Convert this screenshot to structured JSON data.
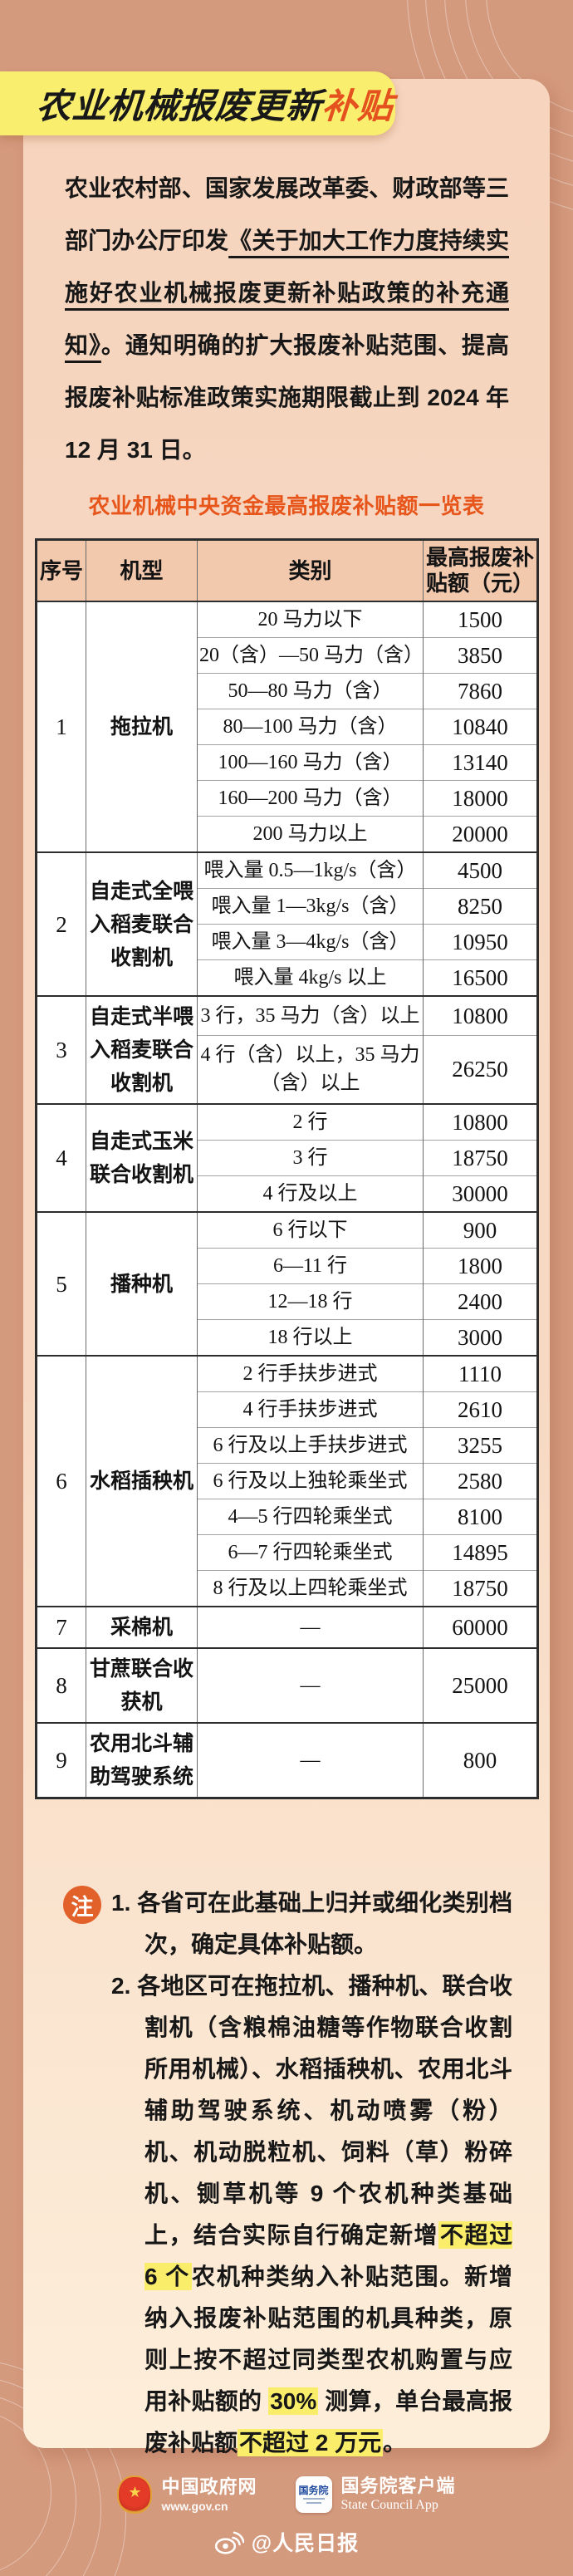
{
  "palette": {
    "background": "#d49a7e",
    "card_top": "#f6d4be",
    "card_bottom": "#fdeeda",
    "banner_yellow": "#f9ee6e",
    "accent_orange": "#e4511e",
    "table_header_bg": "#f3c9ae",
    "note_badge": "#e2602a",
    "highlight_yellow": "#f9ed6a"
  },
  "header": {
    "title_main": "农业机械报废更新",
    "title_accent": "补贴"
  },
  "intro": {
    "before": "农业农村部、国家发展改革委、财政部等三部门办公厅印发",
    "doc_title": "《关于加大工作力度持续实施好农业机械报废更新补贴政策的补充通知》",
    "after": "。通知明确的扩大报废补贴范围、提高报废补贴标准政策实施期限截止到 2024 年 12 月 31 日。"
  },
  "table": {
    "title": "农业机械中央资金最高报废补贴额一览表",
    "columns": [
      "序号",
      "机型",
      "类别",
      "最高报废补贴额（元）"
    ],
    "groups": [
      {
        "no": "1",
        "machine": "拖拉机",
        "rows": [
          {
            "category": "20 马力以下",
            "amount": "1500"
          },
          {
            "category": "20（含）—50 马力（含）",
            "amount": "3850"
          },
          {
            "category": "50—80 马力（含）",
            "amount": "7860"
          },
          {
            "category": "80—100 马力（含）",
            "amount": "10840"
          },
          {
            "category": "100—160 马力（含）",
            "amount": "13140"
          },
          {
            "category": "160—200 马力（含）",
            "amount": "18000"
          },
          {
            "category": "200 马力以上",
            "amount": "20000"
          }
        ]
      },
      {
        "no": "2",
        "machine": "自走式全喂入稻麦联合收割机",
        "rows": [
          {
            "category": "喂入量 0.5—1kg/s（含）",
            "amount": "4500"
          },
          {
            "category": "喂入量 1—3kg/s（含）",
            "amount": "8250"
          },
          {
            "category": "喂入量 3—4kg/s（含）",
            "amount": "10950"
          },
          {
            "category": "喂入量 4kg/s 以上",
            "amount": "16500"
          }
        ]
      },
      {
        "no": "3",
        "machine": "自走式半喂入稻麦联合收割机",
        "rows": [
          {
            "category": "3 行，35 马力（含）以上",
            "amount": "10800"
          },
          {
            "category": "4 行（含）以上，35 马力（含）以上",
            "amount": "26250"
          }
        ]
      },
      {
        "no": "4",
        "machine": "自走式玉米联合收割机",
        "rows": [
          {
            "category": "2 行",
            "amount": "10800"
          },
          {
            "category": "3 行",
            "amount": "18750"
          },
          {
            "category": "4 行及以上",
            "amount": "30000"
          }
        ]
      },
      {
        "no": "5",
        "machine": "播种机",
        "rows": [
          {
            "category": "6 行以下",
            "amount": "900"
          },
          {
            "category": "6—11 行",
            "amount": "1800"
          },
          {
            "category": "12—18 行",
            "amount": "2400"
          },
          {
            "category": "18 行以上",
            "amount": "3000"
          }
        ]
      },
      {
        "no": "6",
        "machine": "水稻插秧机",
        "rows": [
          {
            "category": "2 行手扶步进式",
            "amount": "1110"
          },
          {
            "category": "4 行手扶步进式",
            "amount": "2610"
          },
          {
            "category": "6 行及以上手扶步进式",
            "amount": "3255"
          },
          {
            "category": "6 行及以上独轮乘坐式",
            "amount": "2580"
          },
          {
            "category": "4—5 行四轮乘坐式",
            "amount": "8100"
          },
          {
            "category": "6—7 行四轮乘坐式",
            "amount": "14895"
          },
          {
            "category": "8 行及以上四轮乘坐式",
            "amount": "18750"
          }
        ]
      },
      {
        "no": "7",
        "machine": "采棉机",
        "rows": [
          {
            "category": "—",
            "amount": "60000"
          }
        ]
      },
      {
        "no": "8",
        "machine": "甘蔗联合收获机",
        "rows": [
          {
            "category": "—",
            "amount": "25000"
          }
        ]
      },
      {
        "no": "9",
        "machine": "农用北斗辅助驾驶系统",
        "rows": [
          {
            "category": "—",
            "amount": "800"
          }
        ]
      }
    ]
  },
  "notes": {
    "badge": "注",
    "items": [
      {
        "num": "1.",
        "segments": [
          {
            "text": "各省可在此基础上归并或细化类别档次，确定具体补贴额。",
            "highlight": false
          }
        ]
      },
      {
        "num": "2.",
        "segments": [
          {
            "text": "各地区可在拖拉机、播种机、联合收割机（含粮棉油糖等作物联合收割所用机械）、水稻插秧机、农用北斗辅助驾驶系统、机动喷雾（粉）机、机动脱粒机、饲料（草）粉碎机、铡草机等 9 个农机种类基础上，结合实际自行确定新增",
            "highlight": false
          },
          {
            "text": "不超过 6 个",
            "highlight": true
          },
          {
            "text": "农机种类纳入补贴范围。新增纳入报废补贴范围的机具种类，原则上按不超过同类型农机购置与应用补贴额的 ",
            "highlight": false
          },
          {
            "text": "30%",
            "highlight": true
          },
          {
            "text": " 测算，单台最高报废补贴额",
            "highlight": false
          },
          {
            "text": "不超过 2 万元",
            "highlight": true
          },
          {
            "text": "。",
            "highlight": false
          }
        ]
      }
    ]
  },
  "footer": {
    "gov": {
      "name": "中国政府网",
      "url": "www.gov.cn"
    },
    "sc_app": {
      "icon_text": "国务院",
      "name": "国务院客户端",
      "name_en": "State Council App"
    },
    "weibo": {
      "account": "@人民日报"
    }
  }
}
